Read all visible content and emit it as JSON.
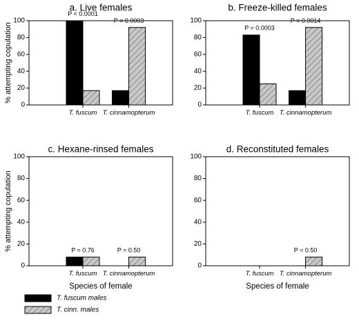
{
  "chart_data": [
    {
      "type": "bar",
      "title": "a. Live females",
      "ylabel": "% attempting copulation",
      "xlabel": "",
      "ylim": [
        0,
        100
      ],
      "yticks": [
        0,
        20,
        40,
        60,
        80,
        100
      ],
      "categories": [
        "T. fuscum",
        "T. cinnamopterum"
      ],
      "series": [
        {
          "name": "T. fuscum males",
          "values": [
            100,
            17
          ],
          "color": "#000000",
          "pattern": "solid"
        },
        {
          "name": "T. cinn. males",
          "values": [
            17,
            92
          ],
          "color": "#c8c8c8",
          "pattern": "hatched"
        }
      ],
      "pvalues": [
        "P < 0.0001",
        "P = 0.0003"
      ],
      "grid": false
    },
    {
      "type": "bar",
      "title": "b. Freeze-killed females",
      "ylabel": "",
      "xlabel": "",
      "ylim": [
        0,
        100
      ],
      "yticks": [
        0,
        20,
        40,
        60,
        80,
        100
      ],
      "categories": [
        "T. fuscum",
        "T. cinnamopterum"
      ],
      "series": [
        {
          "name": "T. fuscum males",
          "values": [
            83,
            17
          ],
          "color": "#000000",
          "pattern": "solid"
        },
        {
          "name": "T. cinn. males",
          "values": [
            25,
            92
          ],
          "color": "#c8c8c8",
          "pattern": "hatched"
        }
      ],
      "pvalues": [
        "P = 0.0003",
        "P = 0.0014"
      ],
      "grid": false
    },
    {
      "type": "bar",
      "title": "c. Hexane-rinsed females",
      "ylabel": "% attempting copulation",
      "xlabel": "Species of female",
      "ylim": [
        0,
        100
      ],
      "yticks": [
        0,
        20,
        40,
        60,
        80,
        100
      ],
      "categories": [
        "T. fuscum",
        "T. cinnamopterum"
      ],
      "series": [
        {
          "name": "T. fuscum males",
          "values": [
            8,
            0
          ],
          "color": "#000000",
          "pattern": "solid"
        },
        {
          "name": "T. cinn. males",
          "values": [
            8,
            8
          ],
          "color": "#c8c8c8",
          "pattern": "hatched"
        }
      ],
      "pvalues": [
        "P = 0.76",
        "P = 0.50"
      ],
      "grid": false
    },
    {
      "type": "bar",
      "title": "d. Reconstituted females",
      "ylabel": "",
      "xlabel": "Species of female",
      "ylim": [
        0,
        100
      ],
      "yticks": [
        0,
        20,
        40,
        60,
        80,
        100
      ],
      "categories": [
        "T. fuscum",
        "T. cinnamopterum"
      ],
      "series": [
        {
          "name": "T. fuscum males",
          "values": [
            0,
            0
          ],
          "color": "#000000",
          "pattern": "solid"
        },
        {
          "name": "T. cinn. males",
          "values": [
            0,
            8
          ],
          "color": "#c8c8c8",
          "pattern": "hatched"
        }
      ],
      "pvalues": [
        "",
        "P = 0.50"
      ],
      "grid": false
    }
  ],
  "legend": {
    "placement": "bottom-left",
    "entries": [
      {
        "label": "T. fuscum males",
        "color": "#000000",
        "pattern": "solid"
      },
      {
        "label": "T. cinn. males",
        "color": "#c8c8c8",
        "pattern": "hatched"
      }
    ]
  }
}
